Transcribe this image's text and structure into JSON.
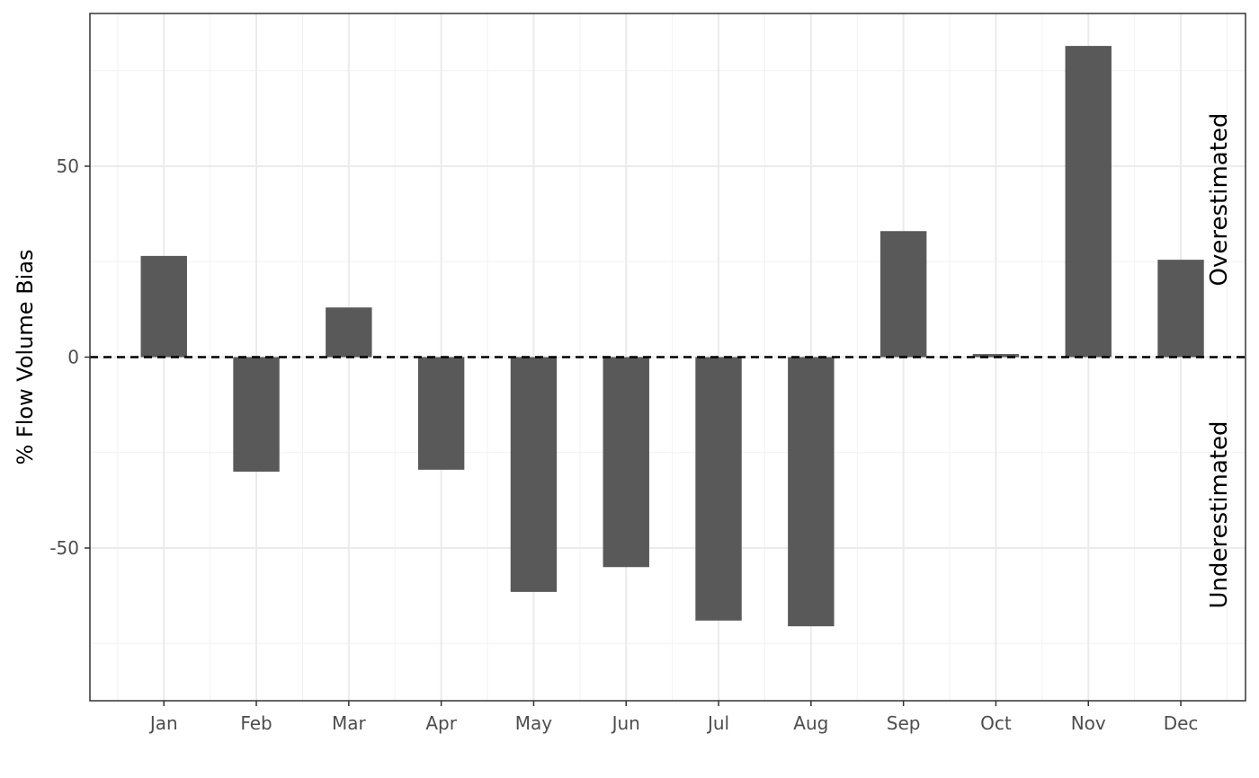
{
  "chart_data": {
    "type": "bar",
    "title": "",
    "xlabel": "",
    "ylabel": "% Flow Volume Bias",
    "categories": [
      "Jan",
      "Feb",
      "Mar",
      "Apr",
      "May",
      "Jun",
      "Jul",
      "Aug",
      "Sep",
      "Oct",
      "Nov",
      "Dec"
    ],
    "values": [
      26.5,
      -30,
      13,
      -29.5,
      -61.5,
      -55,
      -69,
      -70.5,
      33,
      0.8,
      81.5,
      25.5
    ],
    "ylim": [
      -90,
      90
    ],
    "yticks": [
      -50,
      0,
      50
    ],
    "ytick_labels": [
      "-50",
      "0",
      "50"
    ],
    "reference_line": {
      "y": 0,
      "style": "dashed",
      "color": "#000000"
    },
    "annotations": {
      "upper": "Overestimated",
      "lower": "Underestimated"
    },
    "bar_color": "#595959",
    "grid": true,
    "legend": "none",
    "panel_border": true
  }
}
